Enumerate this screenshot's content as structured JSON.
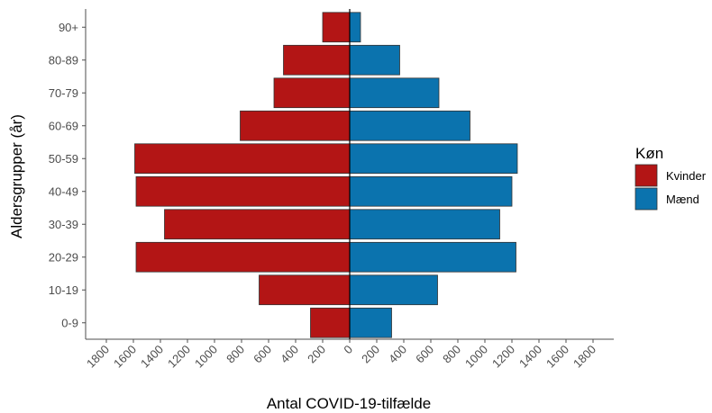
{
  "chart_data": {
    "type": "bar",
    "orientation": "horizontal-population-pyramid",
    "xlabel": "Antal COVID-19-tilfælde",
    "ylabel": "Aldersgrupper (år)",
    "categories": [
      "0-9",
      "10-19",
      "20-29",
      "30-39",
      "40-49",
      "50-59",
      "60-69",
      "70-79",
      "80-89",
      "90+"
    ],
    "series": [
      {
        "name": "Kvinder",
        "color": "#b31515",
        "side": "left",
        "values": [
          290,
          670,
          1580,
          1370,
          1580,
          1590,
          810,
          560,
          490,
          200
        ]
      },
      {
        "name": "Mænd",
        "color": "#0b73ae",
        "side": "right",
        "values": [
          310,
          650,
          1230,
          1110,
          1200,
          1240,
          890,
          660,
          370,
          80
        ]
      }
    ],
    "xlim": [
      -1800,
      1800
    ],
    "x_ticks": [
      -1800,
      -1600,
      -1400,
      -1200,
      -1000,
      -800,
      -600,
      -400,
      -200,
      0,
      200,
      400,
      600,
      800,
      1000,
      1200,
      1400,
      1600,
      1800
    ],
    "x_tick_labels": [
      "1800",
      "1600",
      "1400",
      "1200",
      "1000",
      "800",
      "600",
      "400",
      "200",
      "0",
      "200",
      "400",
      "600",
      "800",
      "1000",
      "1200",
      "1400",
      "1600",
      "1800"
    ],
    "legend": {
      "title": "Køn",
      "position": "right"
    },
    "grid": false
  }
}
